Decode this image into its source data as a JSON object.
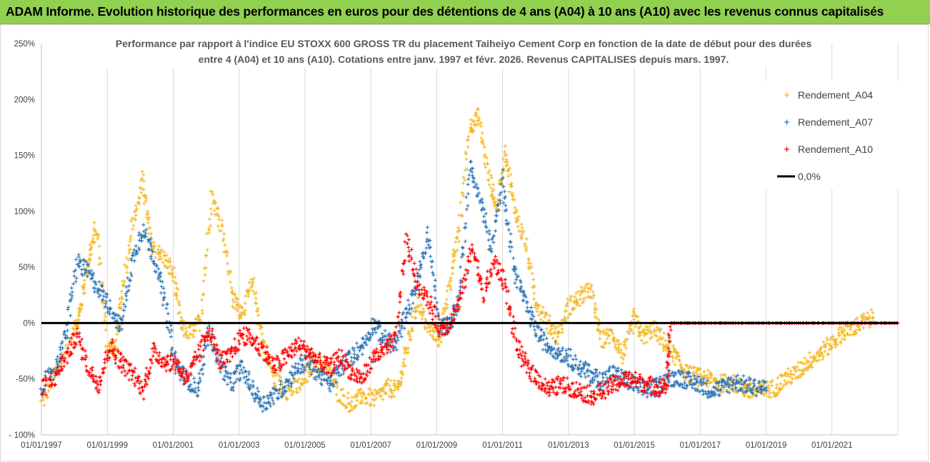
{
  "header": {
    "title": "ADAM Informe. Evolution historique des performances en euros pour des détentions de 4 ans (A04) à 10 ans (A10) avec les revenus connus capitalisés"
  },
  "chart_data": {
    "type": "scatter",
    "title_lines": [
      "Performance par rapport à l'indice EU STOXX 600 GROSS TR  du placement Taiheiyo Cement Corp en fonction de la date de début pour des durées",
      "entre 4 (A04) et 10 ans (A10). Cotations entre janv. 1997 et févr. 2026. Revenus CAPITALISES depuis mars. 1997."
    ],
    "x_axis": {
      "min": "1997-01-01",
      "max": "2023-01-01",
      "tick_labels": [
        "01/01/1997",
        "01/01/1999",
        "01/01/2001",
        "01/01/2003",
        "01/01/2005",
        "01/01/2007",
        "01/01/2009",
        "01/01/2011",
        "01/01/2013",
        "01/01/2015",
        "01/01/2017",
        "01/01/2019",
        "01/01/2021"
      ]
    },
    "y_axis": {
      "min": -100,
      "max": 250,
      "unit": "%",
      "tick_labels": [
        "250%",
        "200%",
        "150%",
        "100%",
        "50%",
        "0%",
        "-50%",
        "- 100%"
      ]
    },
    "grid": "vertical",
    "legend": {
      "placement": "top-right",
      "entries": [
        "Rendement_A04",
        "Rendement_A07",
        "Rendement_A10",
        "0,0%"
      ]
    },
    "series": [
      {
        "name": "Rendement_A04",
        "color": "#f5b821",
        "marker": "plus",
        "x": [
          "1997-01",
          "1997-06",
          "1998-01",
          "1998-03",
          "1998-06",
          "1998-09",
          "1999-01",
          "1999-04",
          "1999-06",
          "1999-10",
          "2000-02",
          "2000-05",
          "2000-09",
          "2001-01",
          "2001-04",
          "2001-08",
          "2001-11",
          "2002-03",
          "2002-07",
          "2002-11",
          "2003-02",
          "2003-06",
          "2003-10",
          "2004-02",
          "2004-07",
          "2004-12",
          "2005-04",
          "2005-09",
          "2006-01",
          "2006-06",
          "2006-10",
          "2007-03",
          "2007-07",
          "2007-11",
          "2008-02",
          "2008-06",
          "2008-10",
          "2009-02",
          "2009-06",
          "2009-09",
          "2010-01",
          "2010-04",
          "2010-08",
          "2010-11",
          "2011-02",
          "2011-05",
          "2011-09",
          "2012-01",
          "2012-05",
          "2012-09",
          "2013-01",
          "2013-05",
          "2013-09",
          "2014-01",
          "2014-05",
          "2014-09",
          "2015-01",
          "2015-04",
          "2015-08",
          "2015-12",
          "2016-04",
          "2016-08",
          "2016-12",
          "2017-04",
          "2017-08",
          "2017-12",
          "2018-04",
          "2018-08",
          "2018-12",
          "2019-04",
          "2019-08",
          "2019-12",
          "2020-04",
          "2020-08",
          "2020-12",
          "2021-04",
          "2021-08",
          "2021-12",
          "2022-04"
        ],
        "y": [
          -72,
          -45,
          -8,
          10,
          55,
          85,
          -20,
          -25,
          20,
          85,
          128,
          70,
          60,
          45,
          -5,
          -8,
          2,
          115,
          85,
          20,
          10,
          35,
          -20,
          -50,
          -62,
          -55,
          -35,
          -40,
          -62,
          -73,
          -65,
          -68,
          -58,
          -60,
          -25,
          20,
          -5,
          -15,
          40,
          80,
          175,
          185,
          130,
          100,
          155,
          105,
          75,
          20,
          2,
          -12,
          15,
          22,
          30,
          -15,
          -10,
          -30,
          5,
          -12,
          -5,
          -18,
          -30,
          -45,
          -48,
          -50,
          -55,
          -52,
          -58,
          -62,
          -60,
          -58,
          -50,
          -45,
          -35,
          -28,
          -20,
          -10,
          -5,
          0,
          5
        ]
      },
      {
        "name": "Rendement_A07",
        "color": "#2e75b6",
        "marker": "plus",
        "x": [
          "1997-01",
          "1997-06",
          "1997-10",
          "1998-02",
          "1998-06",
          "1998-10",
          "1999-02",
          "1999-06",
          "1999-10",
          "2000-02",
          "2000-06",
          "2000-10",
          "2001-02",
          "2001-06",
          "2001-10",
          "2002-02",
          "2002-06",
          "2002-10",
          "2003-02",
          "2003-06",
          "2003-10",
          "2004-02",
          "2004-06",
          "2004-10",
          "2005-02",
          "2005-06",
          "2005-10",
          "2006-02",
          "2006-06",
          "2006-10",
          "2007-02",
          "2007-06",
          "2007-10",
          "2008-02",
          "2008-06",
          "2008-10",
          "2009-02",
          "2009-06",
          "2009-09",
          "2010-01",
          "2010-05",
          "2010-09",
          "2011-01",
          "2011-05",
          "2011-09",
          "2012-01",
          "2012-05",
          "2012-09",
          "2013-01",
          "2013-05",
          "2013-09",
          "2014-01",
          "2014-05",
          "2014-09",
          "2015-01",
          "2015-05",
          "2015-09",
          "2016-01",
          "2016-05",
          "2016-09",
          "2017-01",
          "2017-05",
          "2017-09",
          "2018-01",
          "2018-05",
          "2018-09",
          "2019-01"
        ],
        "y": [
          -58,
          -40,
          -10,
          55,
          45,
          30,
          15,
          -5,
          55,
          85,
          60,
          20,
          -40,
          -50,
          -60,
          -5,
          -35,
          -55,
          -40,
          -60,
          -72,
          -65,
          -55,
          -40,
          -35,
          -45,
          -55,
          -40,
          -30,
          -20,
          0,
          -15,
          -20,
          10,
          35,
          80,
          -5,
          0,
          20,
          140,
          110,
          65,
          130,
          50,
          20,
          -5,
          -20,
          -25,
          -30,
          -40,
          -45,
          -52,
          -45,
          -50,
          -55,
          -60,
          -58,
          -50,
          -48,
          -52,
          -55,
          -60,
          -58,
          -52,
          -55,
          -57,
          -58
        ]
      },
      {
        "name": "Rendement_A10",
        "color": "#ff0000",
        "marker": "plus",
        "x": [
          "1997-01",
          "1997-06",
          "1997-10",
          "1998-02",
          "1998-06",
          "1998-10",
          "1999-02",
          "1999-06",
          "1999-10",
          "2000-02",
          "2000-06",
          "2000-10",
          "2001-02",
          "2001-06",
          "2001-10",
          "2002-02",
          "2002-06",
          "2002-10",
          "2003-02",
          "2003-06",
          "2003-10",
          "2004-02",
          "2004-06",
          "2004-10",
          "2005-02",
          "2005-06",
          "2005-10",
          "2006-02",
          "2006-06",
          "2006-10",
          "2007-02",
          "2007-06",
          "2007-10",
          "2008-02",
          "2008-06",
          "2008-10",
          "2009-02",
          "2009-06",
          "2009-10",
          "2010-02",
          "2010-06",
          "2010-10",
          "2011-02",
          "2011-06",
          "2011-10",
          "2012-02",
          "2012-06",
          "2012-10",
          "2013-02",
          "2013-06",
          "2013-10",
          "2014-02",
          "2014-06",
          "2014-10",
          "2015-02",
          "2015-06",
          "2015-10",
          "2016-01",
          "2016-02",
          "2017-01",
          "2018-01",
          "2019-01",
          "2020-01",
          "2021-01",
          "2022-01",
          "2023-01"
        ],
        "y": [
          -60,
          -48,
          -30,
          -10,
          -40,
          -55,
          -20,
          -35,
          -45,
          -60,
          -25,
          -35,
          -35,
          -50,
          -30,
          -5,
          -35,
          -30,
          -10,
          -15,
          -25,
          -40,
          -30,
          -20,
          -25,
          -35,
          -40,
          -30,
          -45,
          -50,
          -30,
          -25,
          -15,
          75,
          35,
          20,
          -5,
          0,
          25,
          70,
          25,
          55,
          35,
          -20,
          -40,
          -50,
          -60,
          -55,
          -58,
          -62,
          -65,
          -60,
          -55,
          -50,
          -52,
          -55,
          -58,
          -55,
          0,
          0,
          0,
          0,
          0,
          0,
          0,
          0
        ]
      }
    ],
    "reference_line": {
      "name": "0,0%",
      "y": 0,
      "color": "#000000"
    }
  }
}
